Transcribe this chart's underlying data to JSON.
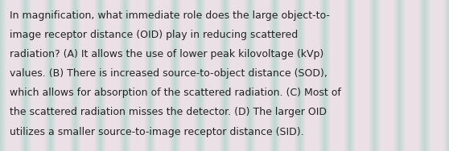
{
  "text_lines": [
    "In magnification, what immediate role does the large object-to-",
    "image receptor distance (OID) play in reducing scattered",
    "radiation? (A) It allows the use of lower peak kilovoltage (kVp)",
    "values. (B) There is increased source-to-object distance (SOD),",
    "which allows for absorption of the scattered radiation. (C) Most of",
    "the scattered radiation misses the detector. (D) The larger OID",
    "utilizes a smaller source-to-image receptor distance (SID)."
  ],
  "bg_base_color": "#e8e0e8",
  "stripe_colors": [
    "#aed8cc",
    "#c8e8e0",
    "#b8d8d0"
  ],
  "text_color": "#222222",
  "font_size": 9.0,
  "fig_width": 5.58,
  "fig_height": 1.88,
  "dpi": 100,
  "num_stripes": 18,
  "stripe_teal": "#9ecfc4",
  "stripe_light": "#dceee8"
}
